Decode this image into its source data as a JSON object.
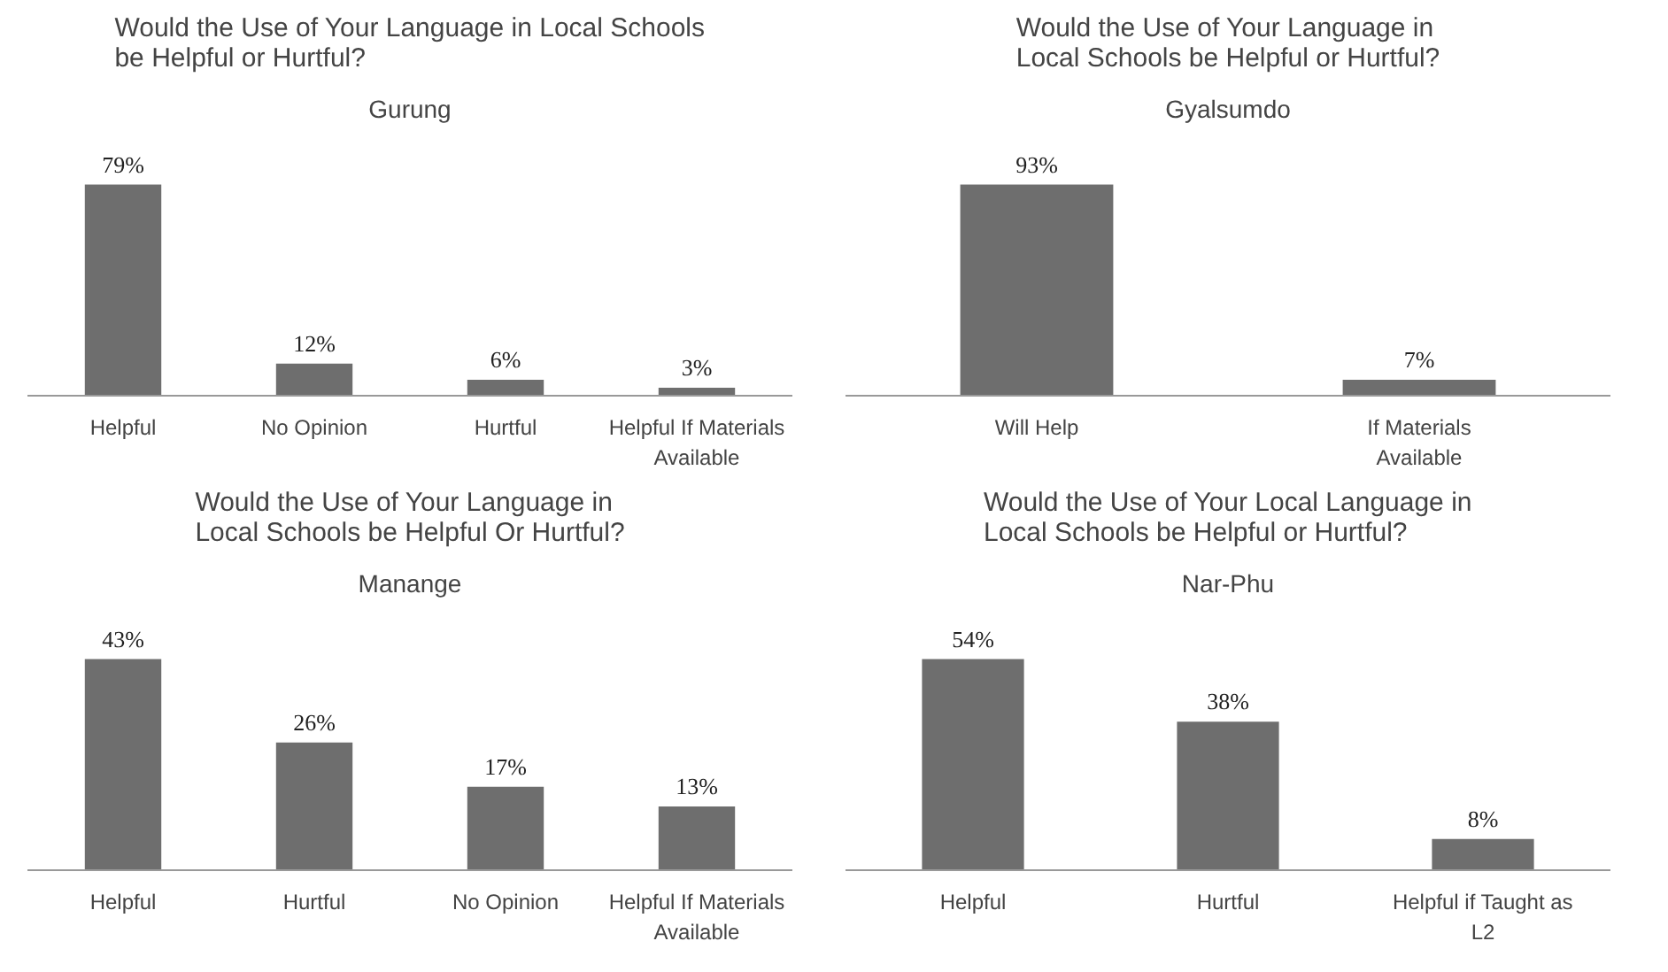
{
  "chart_data": [
    {
      "type": "bar",
      "title": "Would the Use of Your Language in Local Schools\nbe Helpful or Hurtful?",
      "subtitle": "Gurung",
      "categories": [
        "Helpful",
        "No Opinion",
        "Hurtful",
        "Helpful If Materials Available"
      ],
      "values": [
        79,
        12,
        6,
        3
      ],
      "value_labels": [
        "79%",
        "12%",
        "6%",
        "3%"
      ],
      "color": "#6e6e6e",
      "grid": false,
      "tick_labels": "x"
    },
    {
      "type": "bar",
      "title": "Would the Use of Your Language in\nLocal Schools be Helpful or Hurtful?",
      "subtitle": "Gyalsumdo",
      "categories": [
        "Will Help",
        "If Materials Available"
      ],
      "values": [
        93,
        7
      ],
      "value_labels": [
        "93%",
        "7%"
      ],
      "color": "#6e6e6e",
      "grid": false,
      "tick_labels": "x"
    },
    {
      "type": "bar",
      "title": "Would the Use of Your Language in\nLocal Schools be Helpful Or Hurtful?",
      "subtitle": "Manange",
      "categories": [
        "Helpful",
        "Hurtful",
        "No Opinion",
        "Helpful If Materials Available"
      ],
      "values": [
        43,
        26,
        17,
        13
      ],
      "value_labels": [
        "43%",
        "26%",
        "17%",
        "13%"
      ],
      "color": "#6e6e6e",
      "grid": false,
      "tick_labels": "x"
    },
    {
      "type": "bar",
      "title": "Would the Use of Your Local Language in\nLocal Schools be Helpful or Hurtful?",
      "subtitle": "Nar-Phu",
      "categories": [
        "Helpful",
        "Hurtful",
        "Helpful if Taught as L2"
      ],
      "values": [
        54,
        38,
        8
      ],
      "value_labels": [
        "54%",
        "38%",
        "8%"
      ],
      "color": "#6e6e6e",
      "grid": false,
      "tick_labels": "x"
    }
  ]
}
